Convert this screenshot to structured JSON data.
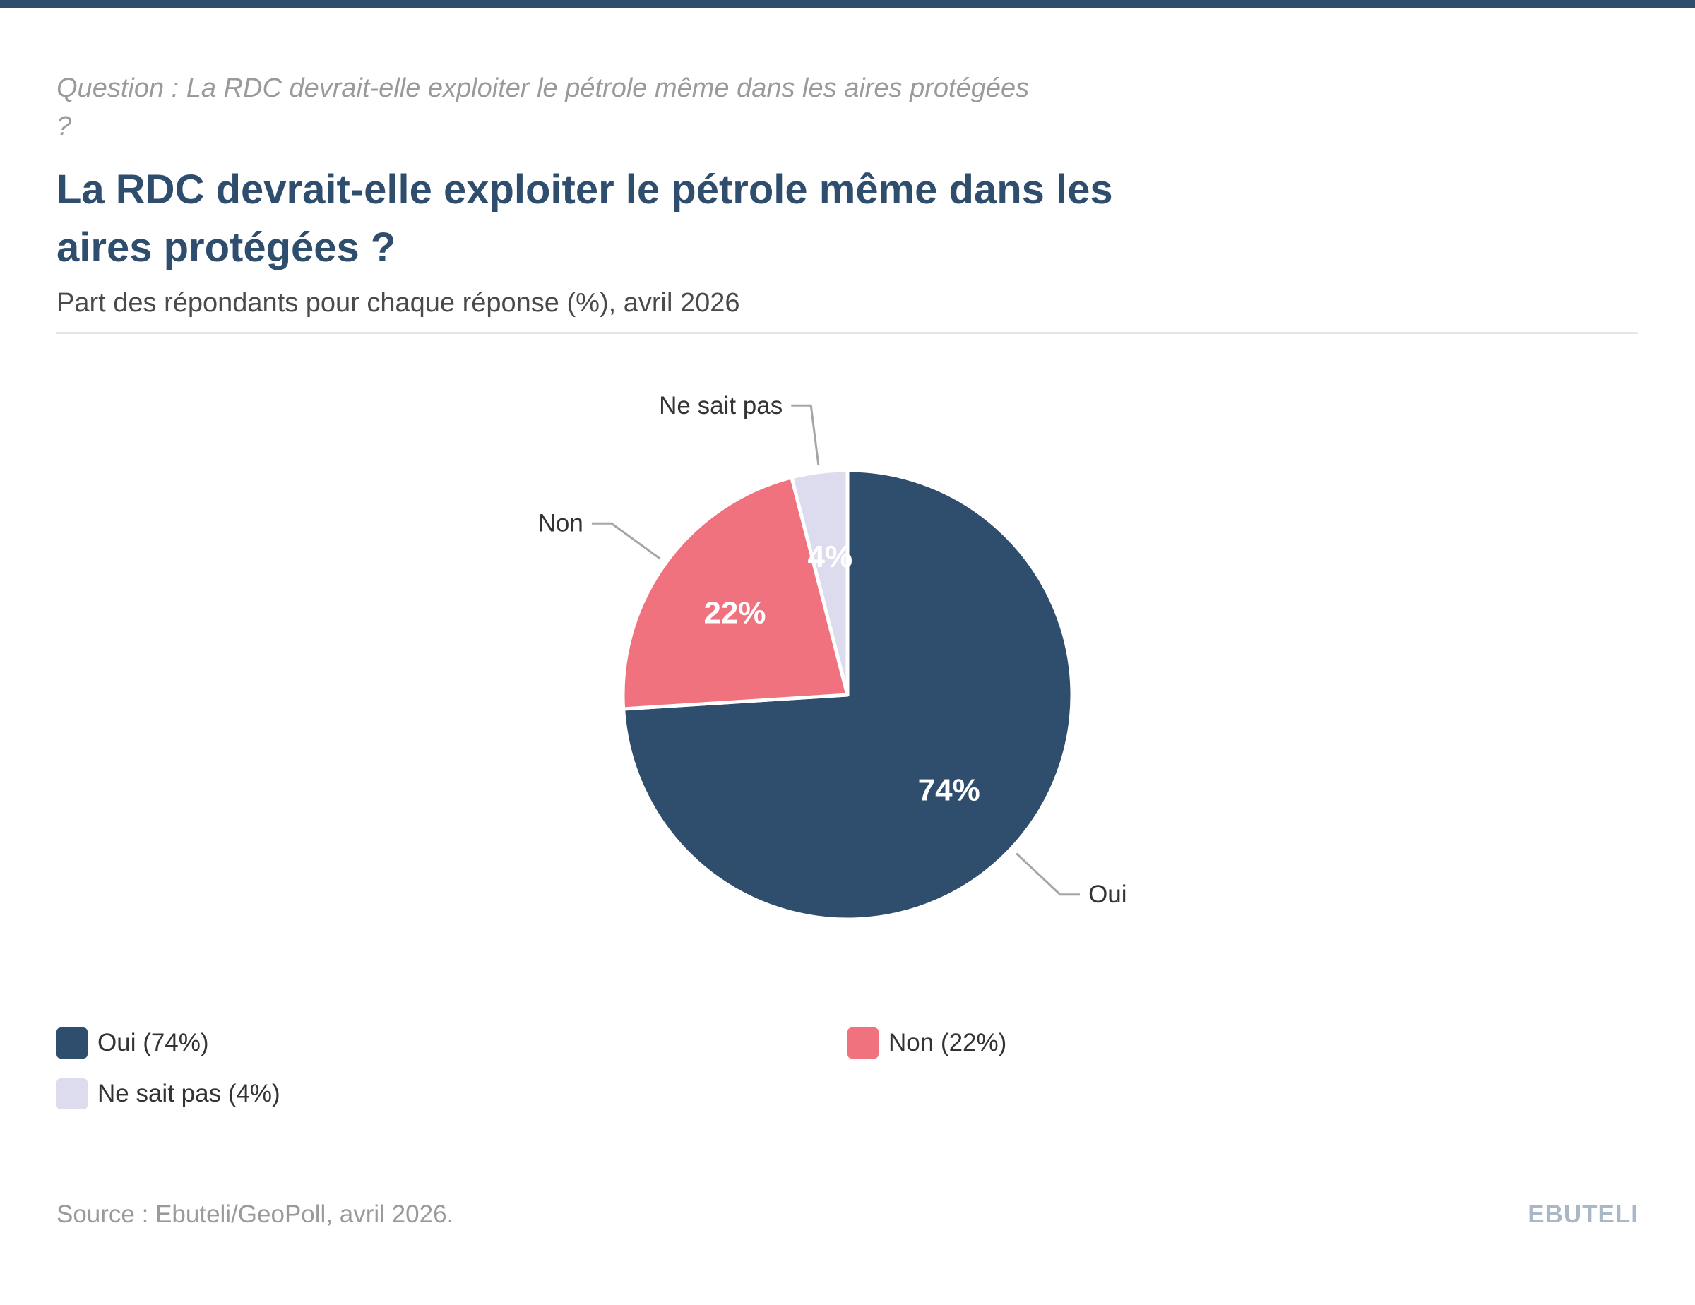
{
  "header": {
    "question": "Question : La RDC devrait-elle exploiter le pétrole même dans les aires protégées ?",
    "title": "La RDC devrait-elle exploiter le pétrole même dans les aires protégées ?",
    "subtitle": "Part des répondants pour chaque réponse (%), avril 2026"
  },
  "chart_data": {
    "type": "pie",
    "title": "La RDC devrait-elle exploiter le pétrole même dans les aires protégées ?",
    "subtitle": "Part des répondants pour chaque réponse (%), avril 2026",
    "unit": "%",
    "slices": [
      {
        "label": "Oui",
        "value": 74,
        "value_label": "74%",
        "legend": "Oui (74%)",
        "color": "#2f4d6d"
      },
      {
        "label": "Non",
        "value": 22,
        "value_label": "22%",
        "legend": "Non (22%)",
        "color": "#f0727e"
      },
      {
        "label": "Ne sait pas",
        "value": 4,
        "value_label": "4%",
        "legend": "Ne sait pas (4%)",
        "color": "#dcdcee"
      }
    ],
    "start": "12 o'clock",
    "direction": "clockwise",
    "legend_position": "bottom"
  },
  "footer": {
    "source": "Source : Ebuteli/GeoPoll, avril 2026.",
    "brand": "EBUTELI"
  }
}
